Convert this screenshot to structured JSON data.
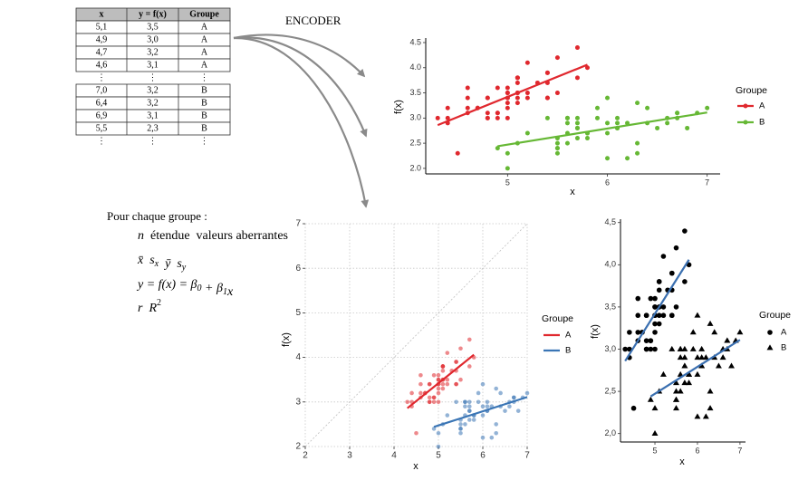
{
  "table": {
    "header": [
      "x",
      "y = f(x)",
      "Groupe"
    ],
    "rows": [
      [
        "5,1",
        "3,5",
        "A"
      ],
      [
        "4,9",
        "3,0",
        "A"
      ],
      [
        "4,7",
        "3,2",
        "A"
      ],
      [
        "4,6",
        "3,1",
        "A"
      ],
      [
        "⋮",
        "⋮",
        "⋮"
      ],
      [
        "7,0",
        "3,2",
        "B"
      ],
      [
        "6,4",
        "3,2",
        "B"
      ],
      [
        "6,9",
        "3,1",
        "B"
      ],
      [
        "5,5",
        "2,3",
        "B"
      ],
      [
        "⋮",
        "⋮",
        "⋮"
      ]
    ]
  },
  "arrow_label": "ENCODER",
  "formulas": {
    "heading": "Pour chaque groupe :",
    "lines": [
      [
        {
          "text": "n"
        },
        {
          "text": "étendue"
        },
        {
          "text": "valeurs aberrantes"
        }
      ],
      [
        {
          "text": "x̄"
        },
        {
          "text": "s",
          "sub": "x"
        },
        {
          "text": "ȳ"
        },
        {
          "text": "s",
          "sub": "y"
        }
      ],
      [
        {
          "text": "y = f(x) = β",
          "sub": "0"
        },
        {
          "text": " + β",
          "sub": "1"
        },
        {
          "text": "x"
        }
      ],
      [
        {
          "text": "r"
        },
        {
          "text": "R",
          "sup": "2"
        }
      ]
    ]
  },
  "chart_data": [
    {
      "type": "scatter",
      "x_label": "x",
      "y_label": "f(x)",
      "legend_title": "Groupe",
      "legend_style": "line-point",
      "axis_lines": true,
      "grid": false,
      "identity_line": false,
      "xlim": [
        4.18,
        7.13
      ],
      "ylim": [
        1.89,
        4.59
      ],
      "xticks": [
        5,
        6,
        7
      ],
      "yticks": [
        {
          "value": 2,
          "label": "2.0"
        },
        {
          "value": 2.5,
          "label": "2.5"
        },
        {
          "value": 3,
          "label": "3.0"
        },
        {
          "value": 3.5,
          "label": "3.5"
        },
        {
          "value": 4,
          "label": "4.0"
        },
        {
          "value": 4.5,
          "label": "4.5"
        }
      ],
      "series": [
        {
          "name": "A",
          "color": "#e0282e",
          "marker": "circle",
          "alpha": 1,
          "fit_color": "#e0282e",
          "fit": {
            "x": [
              4.3,
              5.8
            ],
            "y": [
              2.86,
              4.06
            ]
          },
          "x": [
            5.1,
            4.9,
            4.7,
            4.6,
            5.0,
            5.4,
            4.6,
            5.0,
            4.4,
            4.9,
            5.4,
            4.8,
            4.8,
            4.3,
            5.8,
            5.7,
            5.4,
            5.1,
            5.7,
            5.1,
            5.4,
            5.1,
            4.6,
            5.1,
            4.8,
            5.0,
            5.0,
            5.2,
            5.2,
            4.7,
            4.8,
            5.4,
            5.2,
            5.5,
            4.9,
            5.0,
            5.5,
            4.9,
            4.4,
            5.1,
            5.0,
            4.5,
            4.4,
            5.0,
            5.1,
            4.8,
            5.1,
            4.6,
            5.3,
            5.0
          ],
          "values": [
            3.5,
            3.0,
            3.2,
            3.1,
            3.6,
            3.9,
            3.4,
            3.4,
            2.9,
            3.1,
            3.7,
            3.4,
            3.0,
            3.0,
            4.0,
            4.4,
            3.9,
            3.5,
            3.8,
            3.8,
            3.4,
            3.7,
            3.6,
            3.3,
            3.4,
            3.0,
            3.4,
            3.5,
            3.4,
            3.2,
            3.1,
            3.4,
            4.1,
            4.2,
            3.1,
            3.2,
            3.5,
            3.6,
            3.0,
            3.4,
            3.5,
            2.3,
            3.2,
            3.5,
            3.8,
            3.0,
            3.8,
            3.2,
            3.7,
            3.3
          ]
        },
        {
          "name": "B",
          "color": "#66b835",
          "marker": "circle",
          "alpha": 1,
          "fit_color": "#66b835",
          "fit": {
            "x": [
              4.9,
              7.0
            ],
            "y": [
              2.44,
              3.11
            ]
          },
          "x": [
            7.0,
            6.4,
            6.9,
            5.5,
            6.5,
            5.7,
            6.3,
            4.9,
            6.6,
            5.2,
            5.0,
            5.9,
            6.0,
            6.1,
            5.6,
            6.7,
            5.6,
            5.8,
            6.2,
            5.6,
            5.9,
            6.1,
            6.3,
            6.1,
            6.4,
            6.6,
            6.8,
            6.7,
            6.0,
            5.7,
            5.5,
            5.5,
            5.8,
            6.0,
            5.4,
            6.0,
            6.7,
            6.3,
            5.6,
            5.5,
            5.5,
            6.1,
            5.8,
            5.0,
            5.6,
            5.7,
            5.7,
            6.2,
            5.1,
            5.7
          ],
          "values": [
            3.2,
            3.2,
            3.1,
            2.3,
            2.8,
            2.8,
            3.3,
            2.4,
            2.9,
            2.7,
            2.0,
            3.0,
            2.2,
            2.9,
            2.9,
            3.1,
            3.0,
            2.7,
            2.2,
            2.5,
            3.2,
            2.8,
            2.5,
            2.8,
            2.9,
            3.0,
            2.8,
            3.0,
            2.9,
            2.6,
            2.4,
            2.4,
            2.7,
            2.7,
            3.0,
            3.4,
            3.1,
            2.3,
            3.0,
            2.5,
            2.6,
            3.0,
            2.6,
            2.3,
            2.7,
            3.0,
            2.9,
            2.9,
            2.5,
            2.8
          ]
        }
      ]
    },
    {
      "type": "scatter",
      "x_label": "x",
      "y_label": "f(x)",
      "legend_title": "Groupe",
      "legend_style": "line",
      "axis_lines": false,
      "grid": true,
      "identity_line": true,
      "xlim": [
        2,
        7
      ],
      "ylim": [
        2,
        7
      ],
      "xticks": [
        2,
        3,
        4,
        5,
        6,
        7
      ],
      "yticks": [
        2,
        3,
        4,
        5,
        6,
        7
      ],
      "series": [
        {
          "name": "A",
          "color": "#e0282e",
          "marker": "circle",
          "alpha": 0.55,
          "fit_color": "#e0282e",
          "fit": {
            "x": [
              4.3,
              5.8
            ],
            "y": [
              2.86,
              4.06
            ]
          },
          "x": [
            5.1,
            4.9,
            4.7,
            4.6,
            5.0,
            5.4,
            4.6,
            5.0,
            4.4,
            4.9,
            5.4,
            4.8,
            4.8,
            4.3,
            5.8,
            5.7,
            5.4,
            5.1,
            5.7,
            5.1,
            5.4,
            5.1,
            4.6,
            5.1,
            4.8,
            5.0,
            5.0,
            5.2,
            5.2,
            4.7,
            4.8,
            5.4,
            5.2,
            5.5,
            4.9,
            5.0,
            5.5,
            4.9,
            4.4,
            5.1,
            5.0,
            4.5,
            4.4,
            5.0,
            5.1,
            4.8,
            5.1,
            4.6,
            5.3,
            5.0
          ],
          "values": [
            3.5,
            3.0,
            3.2,
            3.1,
            3.6,
            3.9,
            3.4,
            3.4,
            2.9,
            3.1,
            3.7,
            3.4,
            3.0,
            3.0,
            4.0,
            4.4,
            3.9,
            3.5,
            3.8,
            3.8,
            3.4,
            3.7,
            3.6,
            3.3,
            3.4,
            3.0,
            3.4,
            3.5,
            3.4,
            3.2,
            3.1,
            3.4,
            4.1,
            4.2,
            3.1,
            3.2,
            3.5,
            3.6,
            3.0,
            3.4,
            3.5,
            2.3,
            3.2,
            3.5,
            3.8,
            3.0,
            3.8,
            3.2,
            3.7,
            3.3
          ]
        },
        {
          "name": "B",
          "color": "#3a75b5",
          "marker": "circle",
          "alpha": 0.55,
          "fit_color": "#3a75b5",
          "fit": {
            "x": [
              4.9,
              7.0
            ],
            "y": [
              2.44,
              3.11
            ]
          },
          "x": [
            7.0,
            6.4,
            6.9,
            5.5,
            6.5,
            5.7,
            6.3,
            4.9,
            6.6,
            5.2,
            5.0,
            5.9,
            6.0,
            6.1,
            5.6,
            6.7,
            5.6,
            5.8,
            6.2,
            5.6,
            5.9,
            6.1,
            6.3,
            6.1,
            6.4,
            6.6,
            6.8,
            6.7,
            6.0,
            5.7,
            5.5,
            5.5,
            5.8,
            6.0,
            5.4,
            6.0,
            6.7,
            6.3,
            5.6,
            5.5,
            5.5,
            6.1,
            5.8,
            5.0,
            5.6,
            5.7,
            5.7,
            6.2,
            5.1,
            5.7
          ],
          "values": [
            3.2,
            3.2,
            3.1,
            2.3,
            2.8,
            2.8,
            3.3,
            2.4,
            2.9,
            2.7,
            2.0,
            3.0,
            2.2,
            2.9,
            2.9,
            3.1,
            3.0,
            2.7,
            2.2,
            2.5,
            3.2,
            2.8,
            2.5,
            2.8,
            2.9,
            3.0,
            2.8,
            3.0,
            2.9,
            2.6,
            2.4,
            2.4,
            2.7,
            2.7,
            3.0,
            3.4,
            3.1,
            2.3,
            3.0,
            2.5,
            2.6,
            3.0,
            2.6,
            2.3,
            2.7,
            3.0,
            2.9,
            2.9,
            2.5,
            2.8
          ]
        }
      ]
    },
    {
      "type": "scatter",
      "x_label": "x",
      "y_label": "f(x)",
      "legend_title": "Groupe",
      "legend_style": "point",
      "axis_lines": true,
      "grid": false,
      "identity_line": false,
      "xlim": [
        4.19,
        7.13
      ],
      "ylim": [
        1.9,
        4.54
      ],
      "xticks": [
        5,
        6,
        7
      ],
      "yticks": [
        {
          "value": 2,
          "label": "2,0"
        },
        {
          "value": 2.5,
          "label": "2,5"
        },
        {
          "value": 3,
          "label": "3,0"
        },
        {
          "value": 3.5,
          "label": "3,5"
        },
        {
          "value": 4,
          "label": "4,0"
        },
        {
          "value": 4.5,
          "label": "4,5"
        }
      ],
      "series": [
        {
          "name": "A",
          "color": "#000000",
          "marker": "circle",
          "alpha": 1,
          "fit_color": "#3a6fb0",
          "fit": {
            "x": [
              4.3,
              5.8
            ],
            "y": [
              2.86,
              4.06
            ]
          },
          "x": [
            5.1,
            4.9,
            4.7,
            4.6,
            5.0,
            5.4,
            4.6,
            5.0,
            4.4,
            4.9,
            5.4,
            4.8,
            4.8,
            4.3,
            5.8,
            5.7,
            5.4,
            5.1,
            5.7,
            5.1,
            5.4,
            5.1,
            4.6,
            5.1,
            4.8,
            5.0,
            5.0,
            5.2,
            5.2,
            4.7,
            4.8,
            5.4,
            5.2,
            5.5,
            4.9,
            5.0,
            5.5,
            4.9,
            4.4,
            5.1,
            5.0,
            4.5,
            4.4,
            5.0,
            5.1,
            4.8,
            5.1,
            4.6,
            5.3,
            5.0
          ],
          "values": [
            3.5,
            3.0,
            3.2,
            3.1,
            3.6,
            3.9,
            3.4,
            3.4,
            2.9,
            3.1,
            3.7,
            3.4,
            3.0,
            3.0,
            4.0,
            4.4,
            3.9,
            3.5,
            3.8,
            3.8,
            3.4,
            3.7,
            3.6,
            3.3,
            3.4,
            3.0,
            3.4,
            3.5,
            3.4,
            3.2,
            3.1,
            3.4,
            4.1,
            4.2,
            3.1,
            3.2,
            3.5,
            3.6,
            3.0,
            3.4,
            3.5,
            2.3,
            3.2,
            3.5,
            3.8,
            3.0,
            3.8,
            3.2,
            3.7,
            3.3
          ]
        },
        {
          "name": "B",
          "color": "#000000",
          "marker": "triangle",
          "alpha": 1,
          "fit_color": "#3a6fb0",
          "fit": {
            "x": [
              4.9,
              7.0
            ],
            "y": [
              2.44,
              3.11
            ]
          },
          "x": [
            7.0,
            6.4,
            6.9,
            5.5,
            6.5,
            5.7,
            6.3,
            4.9,
            6.6,
            5.2,
            5.0,
            5.9,
            6.0,
            6.1,
            5.6,
            6.7,
            5.6,
            5.8,
            6.2,
            5.6,
            5.9,
            6.1,
            6.3,
            6.1,
            6.4,
            6.6,
            6.8,
            6.7,
            6.0,
            5.7,
            5.5,
            5.5,
            5.8,
            6.0,
            5.4,
            6.0,
            6.7,
            6.3,
            5.6,
            5.5,
            5.5,
            6.1,
            5.8,
            5.0,
            5.6,
            5.7,
            5.7,
            6.2,
            5.1,
            5.7
          ],
          "values": [
            3.2,
            3.2,
            3.1,
            2.3,
            2.8,
            2.8,
            3.3,
            2.4,
            2.9,
            2.7,
            2.0,
            3.0,
            2.2,
            2.9,
            2.9,
            3.1,
            3.0,
            2.7,
            2.2,
            2.5,
            3.2,
            2.8,
            2.5,
            2.8,
            2.9,
            3.0,
            2.8,
            3.0,
            2.9,
            2.6,
            2.4,
            2.4,
            2.7,
            2.7,
            3.0,
            3.4,
            3.1,
            2.3,
            3.0,
            2.5,
            2.6,
            3.0,
            2.6,
            2.3,
            2.7,
            3.0,
            2.9,
            2.9,
            2.5,
            2.8
          ]
        }
      ]
    }
  ]
}
